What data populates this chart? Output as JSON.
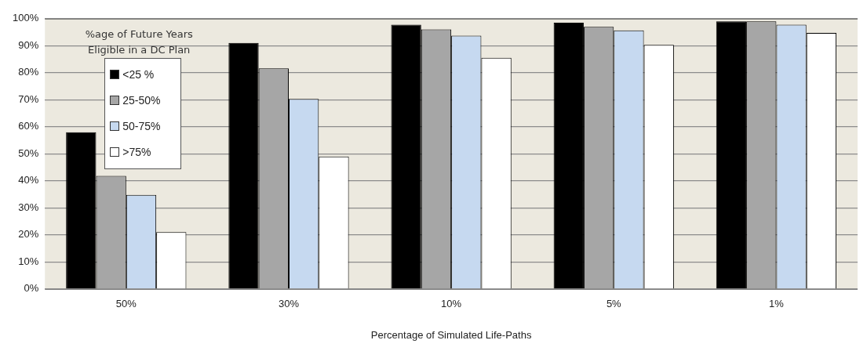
{
  "chart_data": {
    "type": "bar",
    "xlabel": "Percentage of Simulated Life-Paths",
    "categories": [
      "50%",
      "30%",
      "10%",
      "5%",
      "1%"
    ],
    "series": [
      {
        "name": "<25 %",
        "color": "#000000",
        "values": [
          58,
          91,
          97.8,
          98.5,
          99
        ]
      },
      {
        "name": "25-50%",
        "color": "#a6a6a6",
        "values": [
          41.8,
          81.6,
          96,
          97,
          99
        ]
      },
      {
        "name": "50-75%",
        "color": "#c6d9f0",
        "values": [
          34.8,
          70.3,
          93.7,
          95.7,
          97.8
        ]
      },
      {
        "name": ">75%",
        "color": "#ffffff",
        "values": [
          21,
          49,
          85.5,
          90.3,
          94.7
        ]
      }
    ],
    "ylim": [
      0,
      100
    ],
    "yticks": [
      {
        "value": 0,
        "label": "0%"
      },
      {
        "value": 10,
        "label": "10%"
      },
      {
        "value": 20,
        "label": "20%"
      },
      {
        "value": 30,
        "label": "30%"
      },
      {
        "value": 40,
        "label": "40%"
      },
      {
        "value": 50,
        "label": "50%"
      },
      {
        "value": 60,
        "label": "60%"
      },
      {
        "value": 70,
        "label": "70%"
      },
      {
        "value": 80,
        "label": "80%"
      },
      {
        "value": 90,
        "label": "90%"
      },
      {
        "value": 100,
        "label": "100%"
      }
    ],
    "grid": "y",
    "legend": "top left",
    "legend_title": "%age of Future Years Eligible in a DC Plan"
  }
}
